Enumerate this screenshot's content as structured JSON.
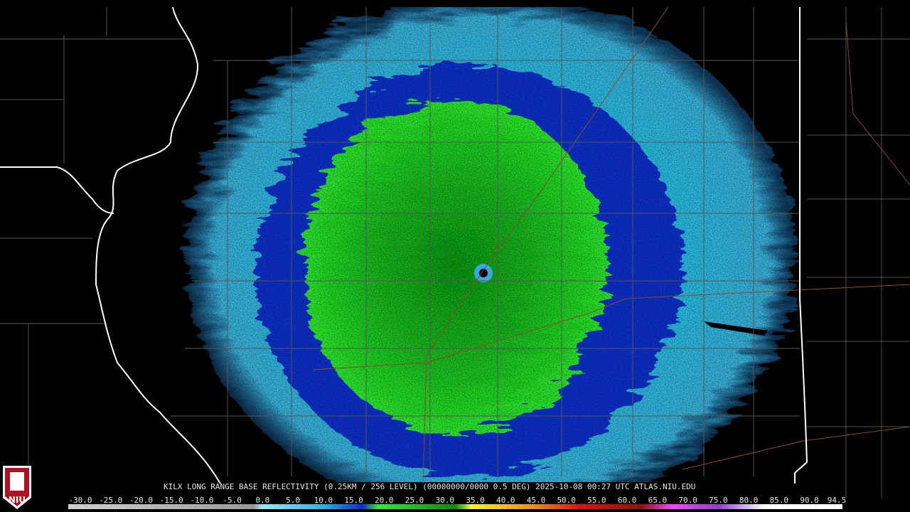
{
  "caption": "KILX LONG RANGE BASE REFLECTIVITY (0.25KM / 256 LEVEL) (00000000/0000 0.5 DEG) 2025-10-08 00:27 UTC  ATLAS.NIU.EDU",
  "colorbar": {
    "labels": [
      "-30.0",
      "-25.0",
      "-20.0",
      "-15.0",
      "-10.0",
      "-5.0",
      "0.0",
      "5.0",
      "10.0",
      "15.0",
      "20.0",
      "25.0",
      "30.0",
      "35.0",
      "40.0",
      "45.0",
      "50.0",
      "55.0",
      "60.0",
      "65.0",
      "70.0",
      "75.0",
      "80.0",
      "85.0",
      "90.0",
      "94.5"
    ]
  },
  "logo": "NIU"
}
